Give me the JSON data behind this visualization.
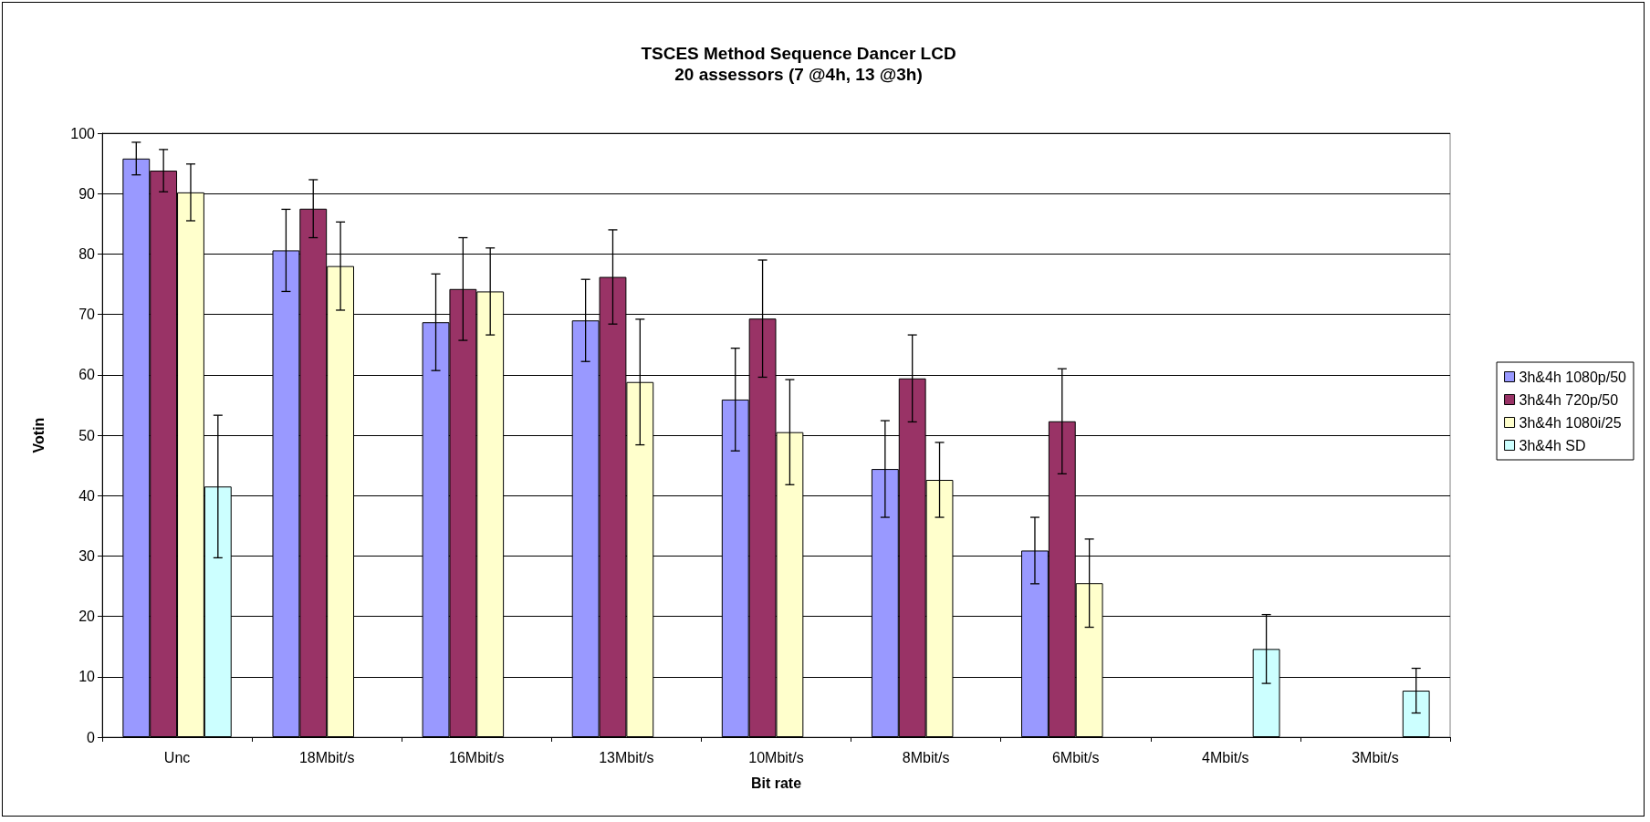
{
  "chart_data": {
    "type": "bar",
    "title": "TSCES Method Sequence Dancer LCD",
    "subtitle": "20 assessors (7 @4h, 13 @3h)",
    "xlabel": "Bit rate",
    "ylabel": "Votin",
    "categories": [
      "Unc",
      "18Mbit/s",
      "16Mbit/s",
      "13Mbit/s",
      "10Mbit/s",
      "8Mbit/s",
      "6Mbit/s",
      "4Mbit/s",
      "3Mbit/s"
    ],
    "series": [
      {
        "name": "3h&4h 1080p/50",
        "color": "#9999ff",
        "values": [
          95.8,
          80.6,
          68.7,
          69,
          55.9,
          44.4,
          30.9,
          null,
          null
        ],
        "errors": [
          2.7,
          6.8,
          8,
          6.8,
          8.5,
          8,
          5.5,
          null,
          null
        ]
      },
      {
        "name": "3h&4h 720p/50",
        "color": "#993366",
        "values": [
          93.8,
          87.5,
          74.2,
          76.2,
          69.3,
          59.4,
          52.3,
          null,
          null
        ],
        "errors": [
          3.5,
          4.8,
          8.5,
          7.8,
          9.7,
          7.2,
          8.7,
          null,
          null
        ]
      },
      {
        "name": "3h&4h 1080i/25",
        "color": "#ffffcc",
        "values": [
          90.2,
          78,
          73.8,
          58.8,
          50.5,
          42.6,
          25.5,
          null,
          null
        ],
        "errors": [
          4.7,
          7.3,
          7.2,
          10.4,
          8.7,
          6.2,
          7.3,
          null,
          null
        ]
      },
      {
        "name": "3h&4h SD",
        "color": "#ccffff",
        "values": [
          41.5,
          null,
          null,
          null,
          null,
          null,
          null,
          14.6,
          7.7
        ],
        "errors": [
          11.8,
          null,
          null,
          null,
          null,
          null,
          null,
          5.7,
          3.7
        ]
      }
    ],
    "ylim": [
      0,
      100
    ],
    "yticks": [
      0,
      10,
      20,
      30,
      40,
      50,
      60,
      70,
      80,
      90,
      100
    ],
    "grid": "y",
    "legend": "right"
  }
}
